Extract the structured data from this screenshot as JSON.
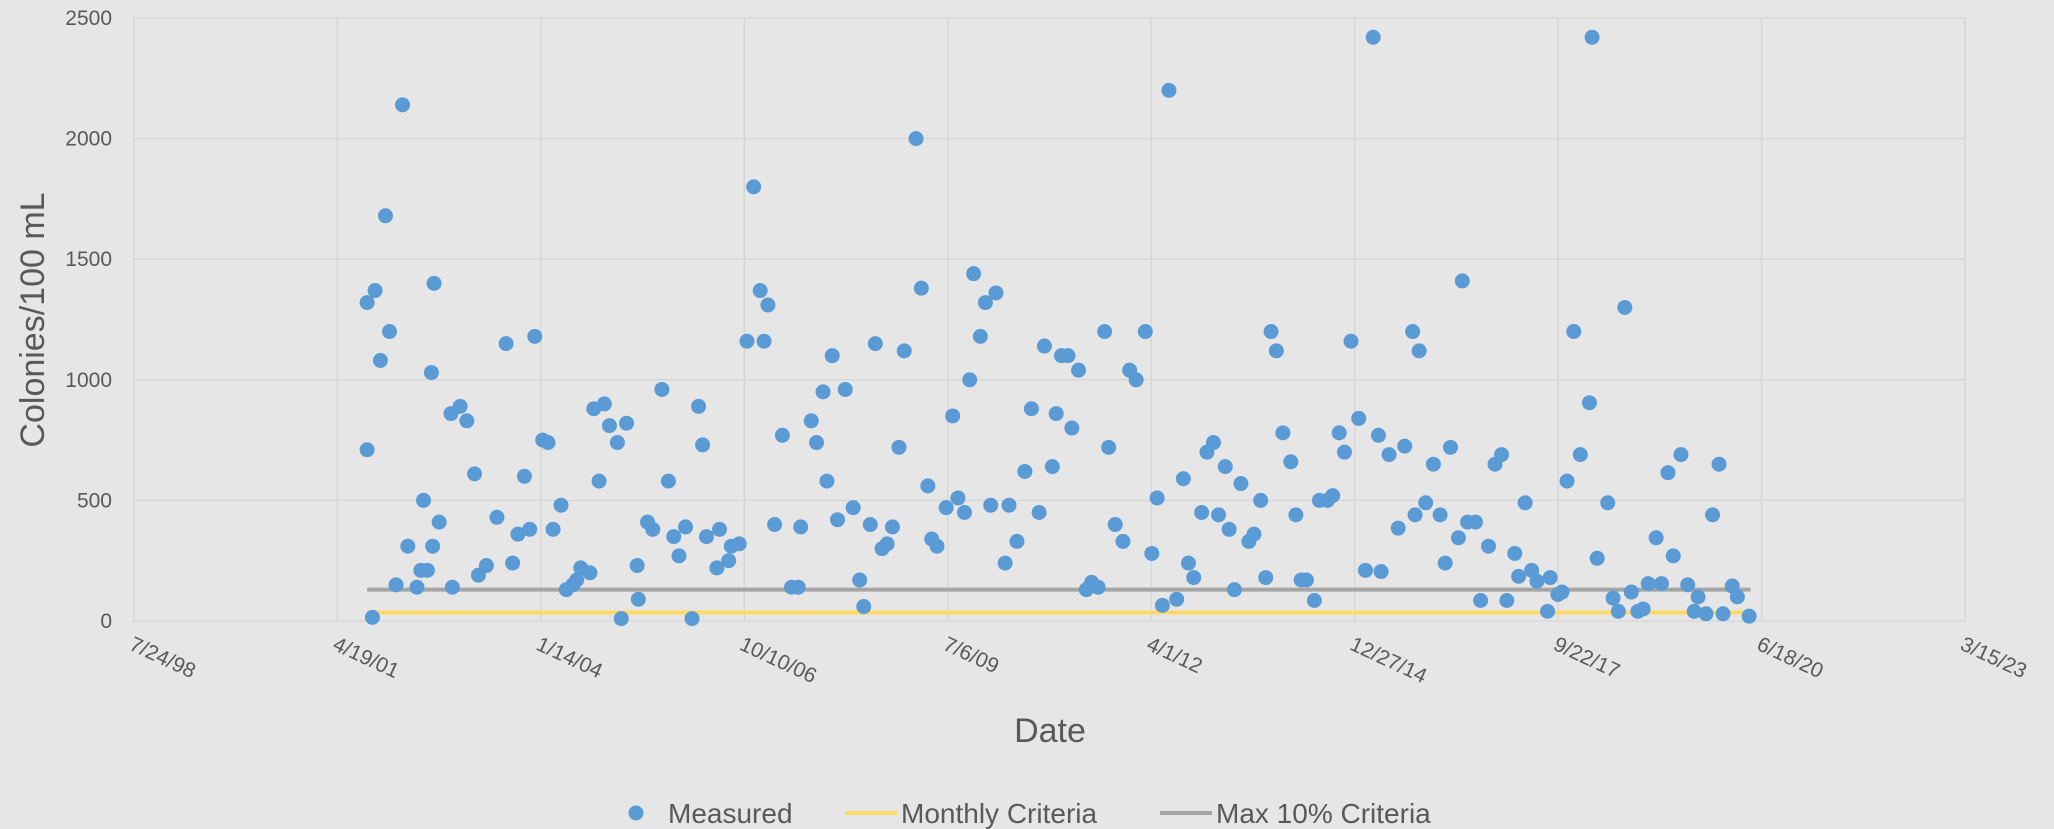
{
  "chart_data": {
    "type": "scatter",
    "xlabel": "Date",
    "ylabel": "Colonies/100 mL",
    "xlim": [
      36000,
      45000
    ],
    "xticks": [
      {
        "value": 36000,
        "label": "7/24/98"
      },
      {
        "value": 37000,
        "label": "4/19/01"
      },
      {
        "value": 38000,
        "label": "1/14/04"
      },
      {
        "value": 39000,
        "label": "10/10/06"
      },
      {
        "value": 40000,
        "label": "7/6/09"
      },
      {
        "value": 41000,
        "label": "4/1/12"
      },
      {
        "value": 42000,
        "label": "12/27/14"
      },
      {
        "value": 43000,
        "label": "9/22/17"
      },
      {
        "value": 44000,
        "label": "6/18/20"
      },
      {
        "value": 45000,
        "label": "3/15/23"
      }
    ],
    "ylim": [
      0,
      2500
    ],
    "yticks": [
      0,
      500,
      1000,
      1500,
      2000,
      2500
    ],
    "grid": true,
    "legend": "bottom",
    "series": [
      {
        "name": "Measured",
        "color": "#5b9bd5",
        "kind": "scatter",
        "x": [
          37146,
          37146,
          37172,
          37185,
          37211,
          37236,
          37256,
          37288,
          37320,
          37346,
          37391,
          37410,
          37423,
          37442,
          37468,
          37462,
          37475,
          37500,
          37565,
          37558,
          37603,
          37636,
          37674,
          37693,
          37732,
          37784,
          37829,
          37861,
          37887,
          37919,
          37945,
          37970,
          38009,
          38035,
          38060,
          38099,
          38125,
          38157,
          38176,
          38196,
          38241,
          38260,
          38286,
          38312,
          38337,
          38376,
          38395,
          38421,
          38473,
          38479,
          38524,
          38550,
          38595,
          38627,
          38653,
          38679,
          38711,
          38743,
          38775,
          38795,
          38814,
          38865,
          38878,
          38923,
          38936,
          38975,
          39013,
          39046,
          39078,
          39097,
          39116,
          39149,
          39187,
          39232,
          39265,
          39277,
          39329,
          39355,
          39387,
          39406,
          39432,
          39458,
          39496,
          39535,
          39567,
          39587,
          39619,
          39644,
          39677,
          39702,
          39728,
          39760,
          39786,
          39844,
          39870,
          39902,
          39921,
          39947,
          39992,
          40024,
          40050,
          40082,
          40108,
          40127,
          40160,
          40185,
          40211,
          40237,
          40282,
          40301,
          40340,
          40379,
          40411,
          40449,
          40475,
          40514,
          40533,
          40559,
          40591,
          40610,
          40643,
          40681,
          40707,
          40739,
          40771,
          40791,
          40823,
          40861,
          40894,
          40926,
          40971,
          41003,
          41029,
          41055,
          41087,
          41125,
          41158,
          41183,
          41209,
          41248,
          41274,
          41306,
          41331,
          41364,
          41383,
          41409,
          41441,
          41480,
          41505,
          41538,
          41563,
          41589,
          41615,
          41647,
          41686,
          41711,
          41737,
          41763,
          41802,
          41827,
          41866,
          41892,
          41924,
          41950,
          41982,
          42020,
          42053,
          42091,
          42117,
          42130,
          42169,
          42214,
          42246,
          42285,
          42297,
          42317,
          42349,
          42387,
          42420,
          42445,
          42471,
          42510,
          42529,
          42555,
          42594,
          42619,
          42658,
          42690,
          42722,
          42748,
          42787,
          42806,
          42838,
          42870,
          42896,
          42948,
          42961,
          42999,
          43019,
          43044,
          43077,
          43109,
          43154,
          43167,
          43192,
          43244,
          43270,
          43296,
          43328,
          43360,
          43392,
          43418,
          43443,
          43482,
          43508,
          43540,
          43566,
          43604,
          43637,
          43669,
          43688,
          43727,
          43759,
          43791,
          43811,
          43856,
          43881,
          43939
        ],
        "values": [
          1320,
          710,
          15,
          1370,
          1080,
          1680,
          1200,
          150,
          2140,
          310,
          140,
          210,
          500,
          210,
          310,
          1030,
          1400,
          410,
          140,
          860,
          890,
          830,
          610,
          190,
          230,
          430,
          1150,
          240,
          360,
          600,
          380,
          1180,
          750,
          740,
          380,
          480,
          130,
          150,
          170,
          220,
          200,
          880,
          580,
          900,
          810,
          740,
          10,
          820,
          230,
          90,
          410,
          380,
          960,
          580,
          350,
          270,
          390,
          10,
          890,
          730,
          350,
          220,
          380,
          250,
          310,
          320,
          1160,
          1800,
          1370,
          1160,
          1310,
          400,
          770,
          140,
          140,
          390,
          830,
          740,
          950,
          580,
          1100,
          420,
          960,
          470,
          170,
          60,
          400,
          1150,
          300,
          320,
          390,
          720,
          1120,
          2000,
          1380,
          560,
          340,
          310,
          470,
          850,
          510,
          450,
          1000,
          1440,
          1180,
          1320,
          480,
          1360,
          240,
          480,
          330,
          620,
          880,
          450,
          1140,
          640,
          860,
          1100,
          1100,
          800,
          1040,
          130,
          160,
          140,
          1200,
          720,
          400,
          330,
          1040,
          1000,
          1200,
          280,
          510,
          65,
          2200,
          90,
          590,
          240,
          180,
          450,
          700,
          740,
          440,
          640,
          380,
          130,
          570,
          330,
          360,
          500,
          180,
          1200,
          1120,
          780,
          660,
          440,
          170,
          170,
          85,
          500,
          500,
          520,
          780,
          700,
          1160,
          840,
          210,
          2420,
          770,
          205,
          690,
          385,
          725,
          1200,
          440,
          1120,
          490,
          650,
          440,
          240,
          720,
          345,
          1410,
          410,
          410,
          85,
          310,
          650,
          690,
          85,
          280,
          185,
          490,
          210,
          165,
          40,
          180,
          110,
          120,
          580,
          1200,
          690,
          905,
          2420,
          260,
          490,
          95,
          40,
          1300,
          120,
          40,
          50,
          155,
          345,
          155,
          615,
          270,
          690,
          150,
          40,
          100,
          30,
          440,
          650,
          30,
          145,
          100,
          20
        ]
      },
      {
        "name": "Monthly Criteria",
        "color": "#ffd966",
        "kind": "line",
        "x": [
          37146,
          43946
        ],
        "values": [
          35,
          35
        ]
      },
      {
        "name": "Max 10% Criteria",
        "color": "#a5a5a5",
        "kind": "line",
        "x": [
          37146,
          43946
        ],
        "values": [
          130,
          130
        ]
      }
    ]
  }
}
